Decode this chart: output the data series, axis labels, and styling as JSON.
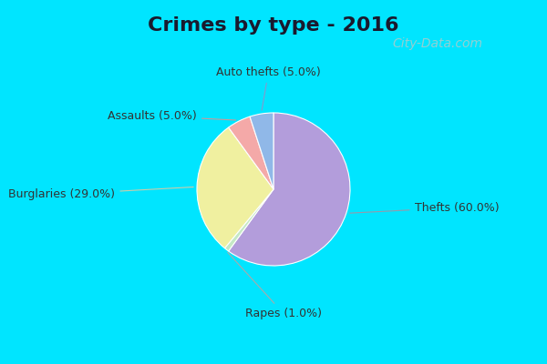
{
  "title": "Crimes by type - 2016",
  "title_fontsize": 16,
  "title_fontweight": "bold",
  "slices": [
    {
      "label": "Thefts (60.0%)",
      "value": 60.0,
      "color": "#b39ddb"
    },
    {
      "label": "Rapes (1.0%)",
      "value": 1.0,
      "color": "#c5e8c5"
    },
    {
      "label": "Burglaries (29.0%)",
      "value": 29.0,
      "color": "#f0f0a0"
    },
    {
      "label": "Assaults (5.0%)",
      "value": 5.0,
      "color": "#f4a9a8"
    },
    {
      "label": "Auto thefts (5.0%)",
      "value": 5.0,
      "color": "#90b8e8"
    }
  ],
  "outer_bg": "#00e5ff",
  "inner_bg": "#d0ead8",
  "startangle": 90,
  "label_fontsize": 9,
  "label_color": "#333333",
  "watermark": "City-Data.com",
  "watermark_color": "#aacccc",
  "watermark_fontsize": 10
}
